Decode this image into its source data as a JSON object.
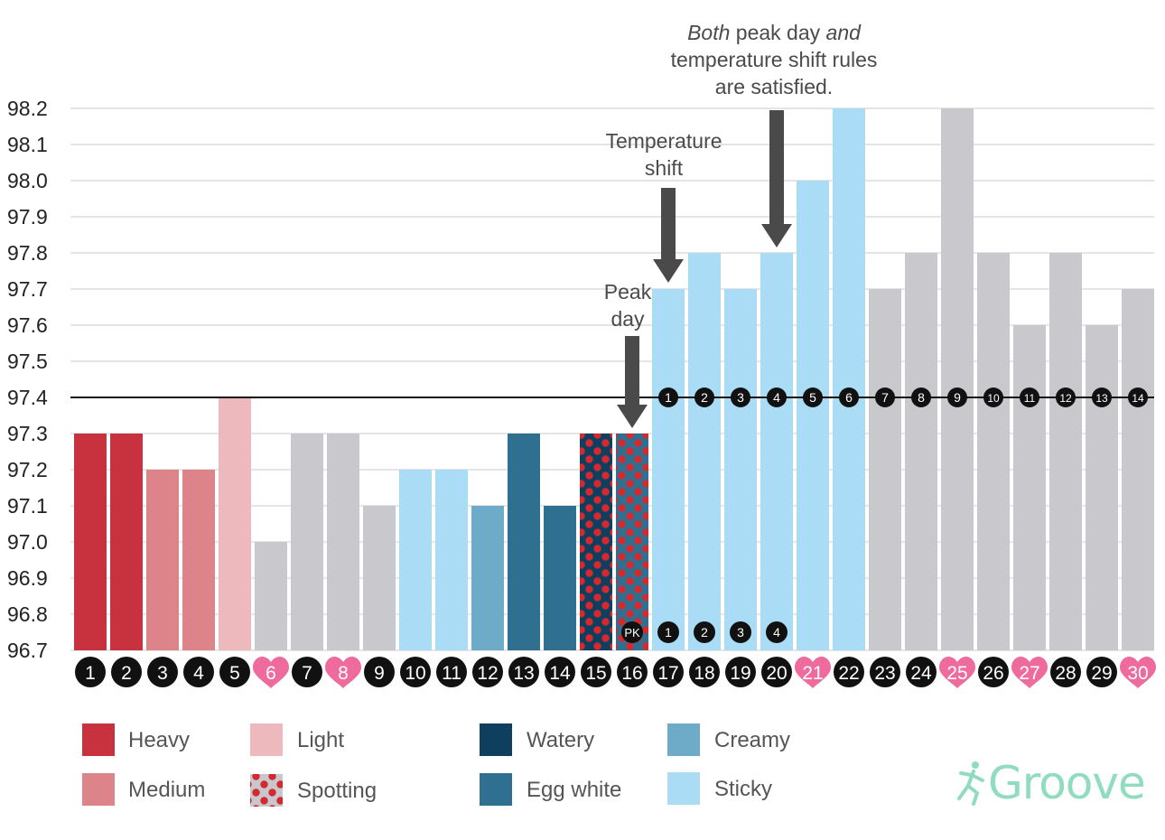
{
  "chart_data": {
    "type": "bar",
    "categories": [
      "1",
      "2",
      "3",
      "4",
      "5",
      "6",
      "7",
      "8",
      "9",
      "10",
      "11",
      "12",
      "13",
      "14",
      "15",
      "16",
      "17",
      "18",
      "19",
      "20",
      "21",
      "22",
      "23",
      "24",
      "25",
      "26",
      "27",
      "28",
      "29",
      "30"
    ],
    "values": [
      97.3,
      97.3,
      97.2,
      97.2,
      97.4,
      97.0,
      97.3,
      97.3,
      97.1,
      97.2,
      97.2,
      97.1,
      97.3,
      97.1,
      97.3,
      97.3,
      97.7,
      97.8,
      97.7,
      97.8,
      98.0,
      98.2,
      97.7,
      97.8,
      98.2,
      97.8,
      97.6,
      97.8,
      97.6,
      97.7
    ],
    "bar_types": [
      "heavy",
      "heavy",
      "medium",
      "medium",
      "light",
      "none",
      "none",
      "none",
      "none",
      "sticky",
      "sticky",
      "creamy",
      "eggwhite",
      "eggwhite",
      "watery_spotting",
      "eggwhite_spotting",
      "sticky",
      "sticky",
      "sticky",
      "sticky",
      "sticky",
      "sticky",
      "none",
      "none",
      "none",
      "none",
      "none",
      "none",
      "none",
      "none"
    ],
    "heart_days": [
      "6",
      "8",
      "21",
      "25",
      "27",
      "30"
    ],
    "ylim": [
      96.7,
      98.2
    ],
    "yticks": [
      "96.7",
      "96.8",
      "96.9",
      "97.0",
      "97.1",
      "97.2",
      "97.3",
      "97.4",
      "97.5",
      "97.6",
      "97.7",
      "97.8",
      "97.9",
      "98.0",
      "98.1",
      "98.2"
    ],
    "coverline": 97.4,
    "coverline_counts": [
      {
        "day": "17",
        "label": "1"
      },
      {
        "day": "18",
        "label": "2"
      },
      {
        "day": "19",
        "label": "3"
      },
      {
        "day": "20",
        "label": "4"
      },
      {
        "day": "21",
        "label": "5"
      },
      {
        "day": "22",
        "label": "6"
      },
      {
        "day": "23",
        "label": "7"
      },
      {
        "day": "24",
        "label": "8"
      },
      {
        "day": "25",
        "label": "9"
      },
      {
        "day": "26",
        "label": "10"
      },
      {
        "day": "27",
        "label": "11"
      },
      {
        "day": "28",
        "label": "12"
      },
      {
        "day": "29",
        "label": "13"
      },
      {
        "day": "30",
        "label": "14"
      }
    ],
    "bottom_counts": [
      {
        "day": "16",
        "label": "PK"
      },
      {
        "day": "17",
        "label": "1"
      },
      {
        "day": "18",
        "label": "2"
      },
      {
        "day": "19",
        "label": "3"
      },
      {
        "day": "20",
        "label": "4"
      }
    ],
    "arrows": [
      {
        "day": "16",
        "text": "Peak day"
      },
      {
        "day": "17",
        "text": "Temperature shift"
      },
      {
        "day": "20",
        "text": "Both peak day and temperature shift rules are satisfied."
      }
    ],
    "grid": true,
    "legend_placement": "bottom"
  },
  "colors": {
    "heavy": "#c8323f",
    "medium": "#dd848a",
    "light": "#edb9bd",
    "spotting_dot": "#d6282f",
    "spotting_bg": "#c8c8cc",
    "watery": "#0f3f5e",
    "eggwhite": "#2f7090",
    "creamy": "#6eabc9",
    "sticky": "#abdcf6",
    "none": "#c9c9cd",
    "heart": "#f06b9d",
    "badge": "#111111",
    "arrow": "#4a4a4a",
    "brand": "#8fdcbf"
  },
  "annotations": {
    "peak_line1": "Peak",
    "peak_line2": "day",
    "shift_line1": "Temperature",
    "shift_line2": "shift",
    "both_word": "Both",
    "both_rest1": " peak day ",
    "both_and": "and",
    "both_line2": "temperature shift rules",
    "both_line3": "are satisfied."
  },
  "legend": [
    {
      "key": "heavy",
      "label": "Heavy"
    },
    {
      "key": "light",
      "label": "Light"
    },
    {
      "key": "watery",
      "label": "Watery"
    },
    {
      "key": "creamy",
      "label": "Creamy"
    },
    {
      "key": "medium",
      "label": "Medium"
    },
    {
      "key": "spotting",
      "label": "Spotting"
    },
    {
      "key": "eggwhite",
      "label": "Egg white"
    },
    {
      "key": "sticky",
      "label": "Sticky"
    }
  ],
  "brand": {
    "name": "Groove",
    "icon": "running-figure-icon"
  }
}
